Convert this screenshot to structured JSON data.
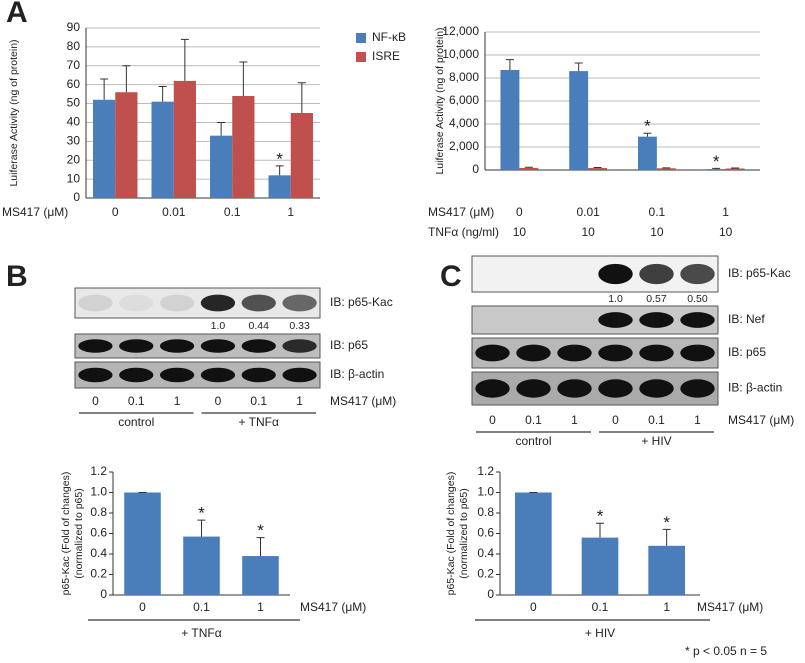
{
  "panels": [
    "A",
    "B",
    "C"
  ],
  "footnote": "* p < 0.05  n = 5",
  "chart_data": [
    {
      "type": "bar",
      "ylabel": [
        "Luiferase Activity (ng of protein)"
      ],
      "x_label": "MS417 (μM)",
      "categories": [
        "0",
        "0.01",
        "0.1",
        "1"
      ],
      "series": [
        {
          "name": "NF-κB",
          "color": "#4a7ebb",
          "values": [
            52,
            51,
            33,
            12
          ],
          "errors": [
            11,
            8,
            7,
            5
          ],
          "annotations": [
            null,
            null,
            null,
            "*"
          ]
        },
        {
          "name": "ISRE",
          "color": "#c0504d",
          "values": [
            56,
            62,
            54,
            45
          ],
          "errors": [
            14,
            22,
            18,
            16
          ],
          "annotations": [
            null,
            null,
            null,
            null
          ]
        }
      ],
      "ylim": [
        0,
        90
      ],
      "yticks": [
        0,
        10,
        20,
        30,
        40,
        50,
        60,
        70,
        80,
        90
      ],
      "grid": true,
      "legend": "right"
    },
    {
      "type": "bar",
      "ylabel": [
        "Luiferase Activity (ng of protein)"
      ],
      "x_label": "MS417 (μM)",
      "categories": [
        "0",
        "0.01",
        "0.1",
        "1"
      ],
      "extra_row": {
        "label": "TNFα (ng/ml)",
        "values": [
          "10",
          "10",
          "10",
          "10"
        ]
      },
      "series": [
        {
          "color": "#4a7ebb",
          "values": [
            8700,
            8600,
            2900,
            80
          ],
          "errors": [
            900,
            700,
            300,
            60
          ],
          "annotations": [
            null,
            null,
            "*",
            "*"
          ]
        },
        {
          "color": "#c0504d",
          "values": [
            180,
            170,
            150,
            130
          ],
          "errors": [
            60,
            50,
            40,
            40
          ],
          "annotations": [
            null,
            null,
            null,
            null
          ]
        }
      ],
      "ylim": [
        0,
        12000
      ],
      "yticks": [
        0,
        {
          "value": 2000,
          "label": "2,000"
        },
        {
          "value": 4000,
          "label": "4,000"
        },
        {
          "value": 6000,
          "label": "6,000"
        },
        {
          "value": 8000,
          "label": "8,000"
        },
        {
          "value": 10000,
          "label": "10,000"
        },
        {
          "value": 12000,
          "label": "12,000"
        }
      ],
      "grid": true
    },
    {
      "type": "bar",
      "ylabel": [
        "p65-Kac (Fold of changes)",
        "(normalized to p65)"
      ],
      "x_label": "MS417 (μM)",
      "group_label": "+ TNFα",
      "categories": [
        "0",
        "0.1",
        "1"
      ],
      "series": [
        {
          "color": "#4a7ebb",
          "values": [
            1,
            0.57,
            0.38
          ],
          "errors": [
            0,
            0.16,
            0.18
          ],
          "annotations": [
            null,
            "*",
            "*"
          ]
        }
      ],
      "ylim": [
        0,
        1.2
      ],
      "yticks": [
        0,
        0.2,
        0.4,
        0.6,
        0.8,
        {
          "value": 1,
          "label": "1.0"
        },
        1.2
      ],
      "grid": false
    },
    {
      "type": "bar",
      "ylabel": [
        "p65-Kac (Fold of changes)",
        "(normalized to p65)"
      ],
      "x_label": "MS417 (μM)",
      "group_label": "+ HIV",
      "categories": [
        "0",
        "0.1",
        "1"
      ],
      "series": [
        {
          "color": "#4a7ebb",
          "values": [
            1,
            0.56,
            0.48
          ],
          "errors": [
            0,
            0.14,
            0.16
          ],
          "annotations": [
            null,
            "*",
            "*"
          ]
        }
      ],
      "ylim": [
        0,
        1.2
      ],
      "yticks": [
        0,
        0.2,
        0.4,
        0.6,
        0.8,
        {
          "value": 1,
          "label": "1.0"
        },
        1.2
      ],
      "grid": false
    }
  ],
  "blots": [
    {
      "rows": [
        "IB: p65-Kac",
        "IB: p65",
        "IB: β-actin"
      ],
      "ratios": [
        "1.0",
        "0.44",
        "0.33"
      ],
      "lanes": [
        "0",
        "0.1",
        "1",
        "0",
        "0.1",
        "1"
      ],
      "unit": "MS417 (μM)",
      "groups": [
        "control",
        "+ TNFα"
      ]
    },
    {
      "rows": [
        "IB: p65-Kac",
        "IB: Nef",
        "IB: p65",
        "IB: β-actin"
      ],
      "ratios": [
        "1.0",
        "0.57",
        "0.50"
      ],
      "lanes": [
        "0",
        "0.1",
        "1",
        "0",
        "0.1",
        "1"
      ],
      "unit": "MS417 (μM)",
      "groups": [
        "control",
        "+ HIV"
      ]
    }
  ]
}
